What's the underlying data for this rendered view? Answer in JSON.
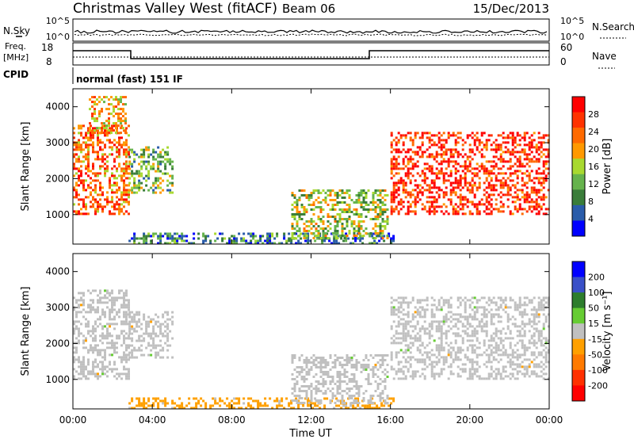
{
  "header": {
    "station": "Christmas Valley West (fitACF)",
    "beam": "Beam 06",
    "date": "15/Dec/2013"
  },
  "status_panels": {
    "nsky_label": "N.Sky",
    "nsky_ticks": [
      "10^5",
      "10^0"
    ],
    "nsearch_label": "N.Search",
    "nsearch_ticks": [
      "10^5",
      "10^0"
    ],
    "freq_label_line1": "Freq.",
    "freq_label_line2": "[MHz]",
    "freq_ticks": [
      "18",
      "8"
    ],
    "nave_label": "Nave",
    "nave_ticks": [
      "60",
      "0"
    ],
    "cpid_label": "CPID",
    "cpid_text": "normal (fast) 151 IF"
  },
  "colors": {
    "power_scale": [
      "#0000ff",
      "#2a5caa",
      "#3a7d3a",
      "#66b34d",
      "#a8d930",
      "#ff9900",
      "#ff6a00",
      "#ff3300",
      "#ff0000"
    ],
    "velocity_scale": [
      "#0000ff",
      "#3a50c8",
      "#2d7d2d",
      "#66cc33",
      "#c0c0c0",
      "#ffa000",
      "#ff7a00",
      "#ff3000",
      "#ff0000"
    ]
  },
  "chart_data": [
    {
      "type": "heatmap",
      "title": "",
      "xlabel": "",
      "ylabel": "Slant Range [km]",
      "x_ticks": [
        "00:00",
        "04:00",
        "08:00",
        "12:00",
        "16:00",
        "20:00",
        "00:00"
      ],
      "y_ticks": [
        "1000",
        "2000",
        "3000",
        "4000"
      ],
      "xlim_hours": [
        0,
        24
      ],
      "ylim_km": [
        180,
        4500
      ],
      "colorbar": {
        "label": "Power [dB]",
        "ticks": [
          "28",
          "24",
          "20",
          "16",
          "12",
          "8",
          "4"
        ],
        "range": [
          0,
          30
        ]
      },
      "regions": [
        {
          "name": "evening_far",
          "t": [
            0.0,
            2.8
          ],
          "r": [
            1000,
            3500
          ],
          "value": 22
        },
        {
          "name": "evening_upper",
          "t": [
            0.8,
            2.6
          ],
          "r": [
            3300,
            4300
          ],
          "value": 18
        },
        {
          "name": "dusk_patch",
          "t": [
            2.8,
            5.0
          ],
          "r": [
            1600,
            2900
          ],
          "value": 12
        },
        {
          "name": "ground_band",
          "t": [
            2.8,
            16.2
          ],
          "r": [
            200,
            500
          ],
          "value": 8
        },
        {
          "name": "midday_patch",
          "t": [
            11.0,
            15.8
          ],
          "r": [
            350,
            1700
          ],
          "value": 14
        },
        {
          "name": "afternoon_band",
          "t": [
            16.0,
            24.0
          ],
          "r": [
            1000,
            3300
          ],
          "value": 26
        }
      ]
    },
    {
      "type": "heatmap",
      "title": "",
      "xlabel": "Time UT",
      "ylabel": "Slant Range [km]",
      "x_ticks": [
        "00:00",
        "04:00",
        "08:00",
        "12:00",
        "16:00",
        "20:00",
        "00:00"
      ],
      "y_ticks": [
        "1000",
        "2000",
        "3000",
        "4000"
      ],
      "xlim_hours": [
        0,
        24
      ],
      "ylim_km": [
        180,
        4500
      ],
      "colorbar": {
        "label": "Velocity [m s⁻¹]",
        "ticks": [
          "200",
          "100",
          "50",
          "15",
          "-15",
          "-50",
          "-100",
          "-200"
        ],
        "range": [
          -250,
          250
        ]
      },
      "regions": [
        {
          "name": "evening_far",
          "t": [
            0.0,
            2.8
          ],
          "r": [
            1000,
            3500
          ],
          "value": 0
        },
        {
          "name": "dusk_patch",
          "t": [
            2.8,
            5.0
          ],
          "r": [
            1600,
            2900
          ],
          "value": 0
        },
        {
          "name": "ground_band",
          "t": [
            2.8,
            16.2
          ],
          "r": [
            200,
            500
          ],
          "value": -40
        },
        {
          "name": "midday_patch",
          "t": [
            11.0,
            15.8
          ],
          "r": [
            350,
            1700
          ],
          "value": 0
        },
        {
          "name": "afternoon_band",
          "t": [
            16.0,
            24.0
          ],
          "r": [
            1000,
            3300
          ],
          "value": 0
        }
      ]
    }
  ]
}
